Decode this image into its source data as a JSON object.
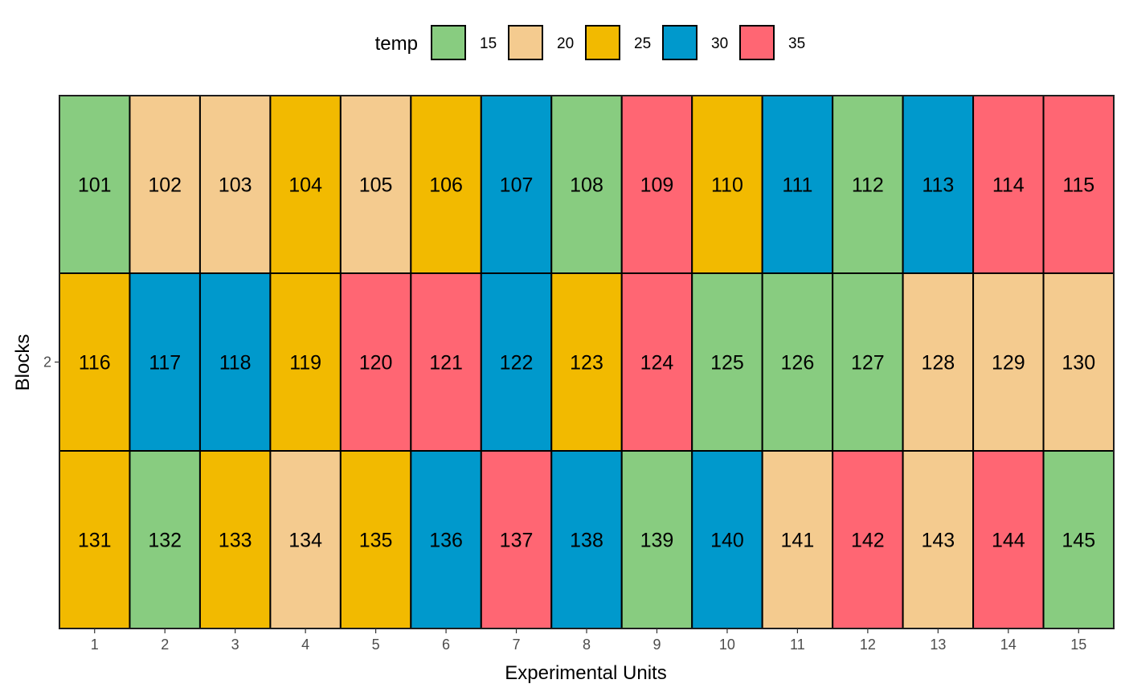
{
  "chart_data": {
    "type": "heatmap",
    "title": "",
    "xlabel": "Experimental Units",
    "ylabel": "Blocks",
    "x_ticks": [
      "1",
      "2",
      "3",
      "4",
      "5",
      "6",
      "7",
      "8",
      "9",
      "10",
      "11",
      "12",
      "13",
      "14",
      "15"
    ],
    "y_ticks": [
      "2"
    ],
    "legend": {
      "title": "temp",
      "position": "top",
      "entries": [
        {
          "label": "15",
          "color": "#88CC80"
        },
        {
          "label": "20",
          "color": "#F4CB8F"
        },
        {
          "label": "25",
          "color": "#F2BA00"
        },
        {
          "label": "30",
          "color": "#0099CC"
        },
        {
          "label": "35",
          "color": "#FF6673"
        }
      ]
    },
    "grid": false,
    "rows": [
      {
        "plots": [
          "101",
          "102",
          "103",
          "104",
          "105",
          "106",
          "107",
          "108",
          "109",
          "110",
          "111",
          "112",
          "113",
          "114",
          "115"
        ],
        "temps": [
          "15",
          "20",
          "20",
          "25",
          "20",
          "25",
          "30",
          "15",
          "35",
          "25",
          "30",
          "15",
          "30",
          "35",
          "35"
        ]
      },
      {
        "plots": [
          "116",
          "117",
          "118",
          "119",
          "120",
          "121",
          "122",
          "123",
          "124",
          "125",
          "126",
          "127",
          "128",
          "129",
          "130"
        ],
        "temps": [
          "25",
          "30",
          "30",
          "25",
          "35",
          "35",
          "30",
          "25",
          "35",
          "15",
          "15",
          "15",
          "20",
          "20",
          "20"
        ]
      },
      {
        "plots": [
          "131",
          "132",
          "133",
          "134",
          "135",
          "136",
          "137",
          "138",
          "139",
          "140",
          "141",
          "142",
          "143",
          "144",
          "145"
        ],
        "temps": [
          "25",
          "15",
          "25",
          "20",
          "25",
          "30",
          "35",
          "30",
          "15",
          "30",
          "20",
          "35",
          "20",
          "35",
          "15"
        ]
      }
    ]
  }
}
